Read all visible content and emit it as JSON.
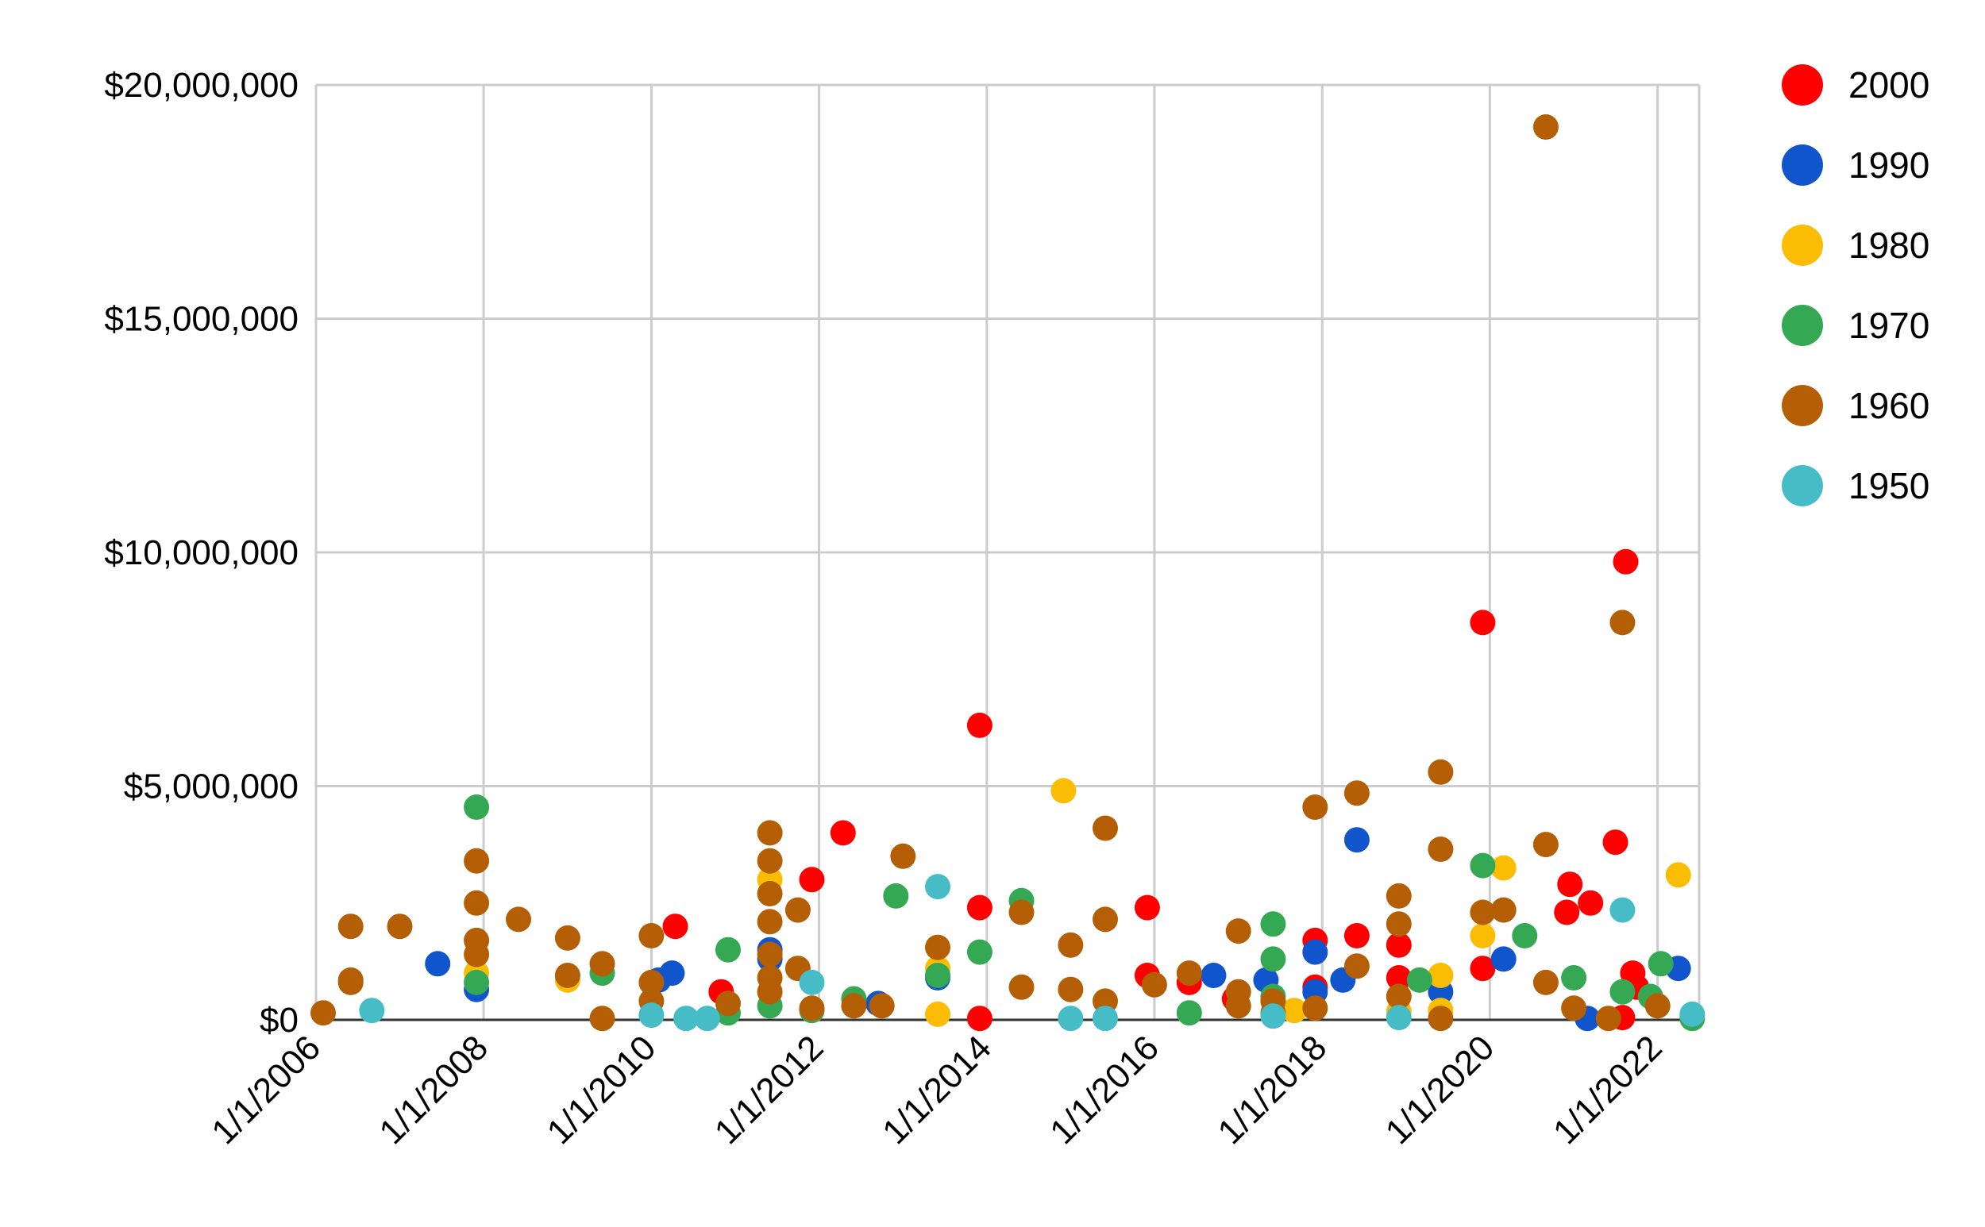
{
  "chart_data": {
    "type": "scatter",
    "title": "",
    "xlabel": "",
    "ylabel": "",
    "x_ticks": [
      "1/1/2006",
      "1/1/2008",
      "1/1/2010",
      "1/1/2012",
      "1/1/2014",
      "1/1/2016",
      "1/1/2018",
      "1/1/2020",
      "1/1/2022"
    ],
    "y_ticks": [
      "$0",
      "$5,000,000",
      "$10,000,000",
      "$15,000,000",
      "$20,000,000"
    ],
    "xlim": [
      "2006-01-01",
      "2022-07-01"
    ],
    "ylim": [
      0,
      20000000
    ],
    "grid": true,
    "legend_position": "right",
    "series": [
      {
        "name": "2000",
        "color": "#ff0000",
        "points": [
          [
            "2010-04-15",
            2000000
          ],
          [
            "2010-11-01",
            600000
          ],
          [
            "2011-12-01",
            3000000
          ],
          [
            "2012-04-15",
            4000000
          ],
          [
            "2013-12-01",
            6300000
          ],
          [
            "2013-12-01",
            2400000
          ],
          [
            "2013-12-01",
            30000
          ],
          [
            "2015-12-01",
            2400000
          ],
          [
            "2015-12-01",
            950000
          ],
          [
            "2016-06-01",
            800000
          ],
          [
            "2016-12-15",
            450000
          ],
          [
            "2017-12-01",
            1700000
          ],
          [
            "2017-12-01",
            700000
          ],
          [
            "2018-06-01",
            1800000
          ],
          [
            "2018-12-01",
            1600000
          ],
          [
            "2018-12-01",
            900000
          ],
          [
            "2019-12-01",
            8500000
          ],
          [
            "2019-12-01",
            1100000
          ],
          [
            "2020-12-15",
            2900000
          ],
          [
            "2020-12-01",
            2300000
          ],
          [
            "2021-03-15",
            2500000
          ],
          [
            "2021-07-01",
            3800000
          ],
          [
            "2021-08-15",
            9800000
          ],
          [
            "2021-09-15",
            1000000
          ],
          [
            "2021-08-01",
            50000
          ],
          [
            "2021-10-01",
            700000
          ]
        ]
      },
      {
        "name": "1990",
        "color": "#1155cc",
        "points": [
          [
            "2007-06-15",
            1200000
          ],
          [
            "2007-12-01",
            650000
          ],
          [
            "2010-02-01",
            850000
          ],
          [
            "2010-04-01",
            1000000
          ],
          [
            "2011-06-01",
            1500000
          ],
          [
            "2011-06-01",
            1300000
          ],
          [
            "2012-09-15",
            350000
          ],
          [
            "2013-06-01",
            900000
          ],
          [
            "2016-09-15",
            950000
          ],
          [
            "2017-05-01",
            850000
          ],
          [
            "2017-12-01",
            1450000
          ],
          [
            "2017-12-01",
            600000
          ],
          [
            "2018-04-01",
            850000
          ],
          [
            "2018-06-01",
            3850000
          ],
          [
            "2019-06-01",
            600000
          ],
          [
            "2020-03-01",
            1300000
          ],
          [
            "2021-03-01",
            30000
          ],
          [
            "2022-04-01",
            1100000
          ]
        ]
      },
      {
        "name": "1980",
        "color": "#fbbc04",
        "points": [
          [
            "2007-12-01",
            1000000
          ],
          [
            "2009-01-01",
            850000
          ],
          [
            "2011-06-01",
            3000000
          ],
          [
            "2013-06-01",
            1100000
          ],
          [
            "2013-06-01",
            120000
          ],
          [
            "2014-12-01",
            4900000
          ],
          [
            "2017-09-01",
            200000
          ],
          [
            "2018-12-01",
            180000
          ],
          [
            "2019-06-01",
            950000
          ],
          [
            "2019-06-01",
            200000
          ],
          [
            "2019-12-01",
            1800000
          ],
          [
            "2020-03-01",
            3250000
          ],
          [
            "2022-04-01",
            3100000
          ],
          [
            "2022-06-01",
            80000
          ]
        ]
      },
      {
        "name": "1970",
        "color": "#34a853",
        "points": [
          [
            "2007-12-01",
            4550000
          ],
          [
            "2007-12-01",
            800000
          ],
          [
            "2009-06-01",
            1000000
          ],
          [
            "2010-12-01",
            1500000
          ],
          [
            "2010-12-01",
            150000
          ],
          [
            "2011-06-01",
            300000
          ],
          [
            "2011-12-01",
            200000
          ],
          [
            "2012-06-01",
            450000
          ],
          [
            "2012-12-01",
            2650000
          ],
          [
            "2013-06-01",
            950000
          ],
          [
            "2013-12-01",
            1450000
          ],
          [
            "2014-06-01",
            2550000
          ],
          [
            "2016-06-01",
            150000
          ],
          [
            "2017-06-01",
            2050000
          ],
          [
            "2017-06-01",
            1300000
          ],
          [
            "2017-06-01",
            500000
          ],
          [
            "2019-03-01",
            850000
          ],
          [
            "2019-12-01",
            3300000
          ],
          [
            "2020-06-01",
            1800000
          ],
          [
            "2021-01-01",
            900000
          ],
          [
            "2021-08-01",
            600000
          ],
          [
            "2021-12-01",
            500000
          ],
          [
            "2022-01-15",
            1200000
          ],
          [
            "2022-06-01",
            30000
          ]
        ]
      },
      {
        "name": "1960",
        "color": "#b45f06",
        "points": [
          [
            "2006-02-01",
            150000
          ],
          [
            "2006-06-01",
            2000000
          ],
          [
            "2006-06-01",
            850000
          ],
          [
            "2006-06-01",
            800000
          ],
          [
            "2007-01-01",
            2000000
          ],
          [
            "2007-12-01",
            3400000
          ],
          [
            "2007-12-01",
            2500000
          ],
          [
            "2007-12-01",
            1700000
          ],
          [
            "2007-12-01",
            1400000
          ],
          [
            "2008-06-01",
            2150000
          ],
          [
            "2009-01-01",
            1750000
          ],
          [
            "2009-01-01",
            950000
          ],
          [
            "2009-06-01",
            1200000
          ],
          [
            "2009-06-01",
            30000
          ],
          [
            "2010-01-01",
            1800000
          ],
          [
            "2010-01-01",
            800000
          ],
          [
            "2010-01-01",
            400000
          ],
          [
            "2010-12-01",
            350000
          ],
          [
            "2011-06-01",
            4000000
          ],
          [
            "2011-06-01",
            3400000
          ],
          [
            "2011-06-01",
            2700000
          ],
          [
            "2011-06-01",
            2100000
          ],
          [
            "2011-06-01",
            1400000
          ],
          [
            "2011-06-01",
            900000
          ],
          [
            "2011-06-01",
            600000
          ],
          [
            "2011-10-01",
            2350000
          ],
          [
            "2011-10-01",
            1100000
          ],
          [
            "2011-12-01",
            250000
          ],
          [
            "2012-06-01",
            300000
          ],
          [
            "2012-10-01",
            300000
          ],
          [
            "2013-01-01",
            3500000
          ],
          [
            "2013-06-01",
            1550000
          ],
          [
            "2014-06-01",
            2300000
          ],
          [
            "2014-06-01",
            700000
          ],
          [
            "2015-01-01",
            1600000
          ],
          [
            "2015-01-01",
            650000
          ],
          [
            "2015-06-01",
            4100000
          ],
          [
            "2015-06-01",
            2150000
          ],
          [
            "2015-06-01",
            400000
          ],
          [
            "2016-01-01",
            750000
          ],
          [
            "2016-06-01",
            1000000
          ],
          [
            "2017-01-01",
            1900000
          ],
          [
            "2017-01-01",
            600000
          ],
          [
            "2017-01-01",
            300000
          ],
          [
            "2017-06-01",
            400000
          ],
          [
            "2017-06-01",
            150000
          ],
          [
            "2017-12-01",
            4550000
          ],
          [
            "2017-12-01",
            250000
          ],
          [
            "2018-06-01",
            4850000
          ],
          [
            "2018-06-01",
            1150000
          ],
          [
            "2018-12-01",
            2650000
          ],
          [
            "2018-12-01",
            2050000
          ],
          [
            "2018-12-01",
            500000
          ],
          [
            "2019-06-01",
            5300000
          ],
          [
            "2019-06-01",
            3650000
          ],
          [
            "2019-06-01",
            30000
          ],
          [
            "2019-12-01",
            2300000
          ],
          [
            "2020-03-01",
            2350000
          ],
          [
            "2020-09-01",
            19100000
          ],
          [
            "2020-09-01",
            3750000
          ],
          [
            "2020-09-01",
            800000
          ],
          [
            "2021-01-01",
            250000
          ],
          [
            "2021-06-01",
            30000
          ],
          [
            "2021-08-01",
            8500000
          ],
          [
            "2022-01-01",
            300000
          ]
        ]
      },
      {
        "name": "1950",
        "color": "#46bdc6",
        "points": [
          [
            "2006-09-01",
            200000
          ],
          [
            "2010-01-01",
            100000
          ],
          [
            "2010-06-01",
            30000
          ],
          [
            "2010-09-01",
            30000
          ],
          [
            "2011-12-01",
            800000
          ],
          [
            "2013-06-01",
            2850000
          ],
          [
            "2015-01-01",
            30000
          ],
          [
            "2015-06-01",
            30000
          ],
          [
            "2017-06-01",
            80000
          ],
          [
            "2018-12-01",
            50000
          ],
          [
            "2021-08-01",
            2350000
          ],
          [
            "2022-06-01",
            120000
          ]
        ]
      }
    ]
  }
}
